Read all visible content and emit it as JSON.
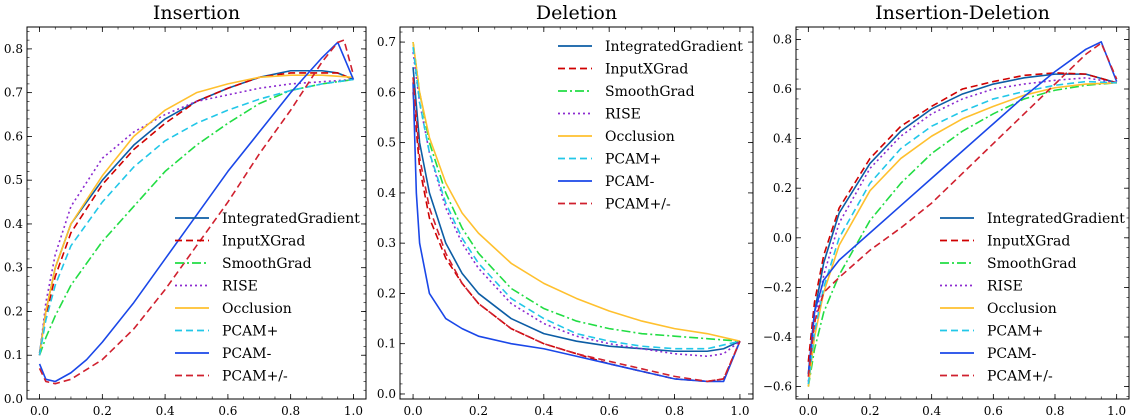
{
  "chart_data": [
    {
      "type": "line",
      "title": "Insertion",
      "xlabel": "",
      "ylabel": "",
      "xlim": [
        -0.04,
        1.04
      ],
      "ylim": [
        0.0,
        0.85
      ],
      "xticks": [
        "0.0",
        "0.2",
        "0.4",
        "0.6",
        "0.8",
        "1.0"
      ],
      "yticks": [
        "0.0",
        "0.1",
        "0.2",
        "0.3",
        "0.4",
        "0.5",
        "0.6",
        "0.7",
        "0.8"
      ],
      "legend_position": "lower-right",
      "series": [
        {
          "name": "IntegratedGradient",
          "color": "#0C5DA5",
          "dash": "solid",
          "x": [
            0,
            0.02,
            0.05,
            0.1,
            0.2,
            0.3,
            0.4,
            0.5,
            0.6,
            0.7,
            0.8,
            0.9,
            0.95,
            1.0
          ],
          "y": [
            0.105,
            0.2,
            0.3,
            0.4,
            0.5,
            0.58,
            0.64,
            0.68,
            0.71,
            0.735,
            0.75,
            0.75,
            0.745,
            0.73
          ]
        },
        {
          "name": "InputXGrad",
          "color": "#D00000",
          "dash": "dashed",
          "x": [
            0,
            0.02,
            0.05,
            0.1,
            0.2,
            0.3,
            0.4,
            0.5,
            0.6,
            0.7,
            0.8,
            0.9,
            0.95,
            1.0
          ],
          "y": [
            0.1,
            0.19,
            0.28,
            0.38,
            0.49,
            0.57,
            0.63,
            0.68,
            0.71,
            0.735,
            0.745,
            0.745,
            0.745,
            0.73
          ]
        },
        {
          "name": "SmoothGrad",
          "color": "#22DD44",
          "dash": "dashdot",
          "x": [
            0,
            0.02,
            0.05,
            0.1,
            0.2,
            0.3,
            0.4,
            0.5,
            0.6,
            0.7,
            0.8,
            0.9,
            1.0
          ],
          "y": [
            0.1,
            0.14,
            0.19,
            0.26,
            0.36,
            0.44,
            0.52,
            0.58,
            0.63,
            0.675,
            0.705,
            0.72,
            0.73
          ]
        },
        {
          "name": "RISE",
          "color": "#8C2BD0",
          "dash": "dotted",
          "x": [
            0,
            0.02,
            0.05,
            0.1,
            0.2,
            0.3,
            0.4,
            0.5,
            0.6,
            0.7,
            0.8,
            0.9,
            1.0
          ],
          "y": [
            0.1,
            0.22,
            0.33,
            0.44,
            0.55,
            0.61,
            0.65,
            0.68,
            0.695,
            0.71,
            0.72,
            0.725,
            0.73
          ]
        },
        {
          "name": "Occlusion",
          "color": "#FFC02E",
          "dash": "solid",
          "x": [
            0,
            0.02,
            0.05,
            0.1,
            0.2,
            0.3,
            0.4,
            0.5,
            0.6,
            0.7,
            0.8,
            0.9,
            1.0
          ],
          "y": [
            0.1,
            0.2,
            0.3,
            0.4,
            0.51,
            0.6,
            0.66,
            0.7,
            0.72,
            0.735,
            0.74,
            0.74,
            0.735
          ]
        },
        {
          "name": "PCAM+",
          "color": "#22C7E8",
          "dash": "dashed",
          "x": [
            0,
            0.02,
            0.05,
            0.1,
            0.2,
            0.3,
            0.4,
            0.5,
            0.6,
            0.7,
            0.8,
            0.9,
            1.0
          ],
          "y": [
            0.1,
            0.18,
            0.26,
            0.35,
            0.45,
            0.53,
            0.59,
            0.63,
            0.66,
            0.685,
            0.705,
            0.72,
            0.73
          ]
        },
        {
          "name": "PCAM-",
          "color": "#1A47E8",
          "dash": "solid",
          "x": [
            0,
            0.02,
            0.05,
            0.1,
            0.15,
            0.2,
            0.3,
            0.4,
            0.5,
            0.6,
            0.7,
            0.8,
            0.9,
            0.95,
            1.0
          ],
          "y": [
            0.08,
            0.045,
            0.04,
            0.06,
            0.09,
            0.13,
            0.22,
            0.32,
            0.42,
            0.52,
            0.61,
            0.7,
            0.78,
            0.815,
            0.73
          ]
        },
        {
          "name": "PCAM+/-",
          "color": "#D0202E",
          "dash": "dashed",
          "x": [
            0,
            0.02,
            0.05,
            0.1,
            0.2,
            0.3,
            0.4,
            0.5,
            0.6,
            0.7,
            0.8,
            0.9,
            0.95,
            0.97,
            1.0
          ],
          "y": [
            0.07,
            0.04,
            0.035,
            0.045,
            0.09,
            0.16,
            0.25,
            0.35,
            0.45,
            0.56,
            0.66,
            0.77,
            0.815,
            0.82,
            0.74
          ]
        }
      ]
    },
    {
      "type": "line",
      "title": "Deletion",
      "xlabel": "",
      "ylabel": "",
      "xlim": [
        -0.04,
        1.04
      ],
      "ylim": [
        -0.01,
        0.73
      ],
      "xticks": [
        "0.0",
        "0.2",
        "0.4",
        "0.6",
        "0.8",
        "1.0"
      ],
      "yticks": [
        "0.0",
        "0.1",
        "0.2",
        "0.3",
        "0.4",
        "0.5",
        "0.6",
        "0.7"
      ],
      "legend_position": "upper-right",
      "series": [
        {
          "name": "IntegratedGradient",
          "color": "#0C5DA5",
          "dash": "solid",
          "x": [
            0,
            0.02,
            0.05,
            0.1,
            0.15,
            0.2,
            0.3,
            0.4,
            0.5,
            0.6,
            0.7,
            0.8,
            0.9,
            0.95,
            1.0
          ],
          "y": [
            0.65,
            0.5,
            0.4,
            0.3,
            0.24,
            0.2,
            0.15,
            0.12,
            0.105,
            0.095,
            0.09,
            0.085,
            0.085,
            0.09,
            0.105
          ]
        },
        {
          "name": "InputXGrad",
          "color": "#D00000",
          "dash": "dashed",
          "x": [
            0,
            0.02,
            0.05,
            0.1,
            0.15,
            0.2,
            0.3,
            0.4,
            0.5,
            0.6,
            0.7,
            0.8,
            0.9,
            0.95,
            1.0
          ],
          "y": [
            0.6,
            0.45,
            0.35,
            0.27,
            0.22,
            0.18,
            0.13,
            0.1,
            0.08,
            0.06,
            0.045,
            0.03,
            0.025,
            0.03,
            0.105
          ]
        },
        {
          "name": "SmoothGrad",
          "color": "#22DD44",
          "dash": "dashdot",
          "x": [
            0,
            0.02,
            0.05,
            0.1,
            0.15,
            0.2,
            0.3,
            0.4,
            0.5,
            0.6,
            0.7,
            0.8,
            0.9,
            1.0
          ],
          "y": [
            0.7,
            0.6,
            0.5,
            0.4,
            0.33,
            0.28,
            0.21,
            0.17,
            0.145,
            0.13,
            0.12,
            0.115,
            0.11,
            0.105
          ]
        },
        {
          "name": "RISE",
          "color": "#8C2BD0",
          "dash": "dotted",
          "x": [
            0,
            0.02,
            0.05,
            0.1,
            0.15,
            0.2,
            0.3,
            0.4,
            0.5,
            0.6,
            0.7,
            0.8,
            0.9,
            0.95,
            1.0
          ],
          "y": [
            0.68,
            0.58,
            0.48,
            0.37,
            0.3,
            0.25,
            0.18,
            0.14,
            0.115,
            0.1,
            0.09,
            0.08,
            0.075,
            0.08,
            0.105
          ]
        },
        {
          "name": "Occlusion",
          "color": "#FFC02E",
          "dash": "solid",
          "x": [
            0,
            0.02,
            0.05,
            0.1,
            0.15,
            0.2,
            0.3,
            0.4,
            0.5,
            0.6,
            0.7,
            0.8,
            0.9,
            1.0
          ],
          "y": [
            0.7,
            0.6,
            0.51,
            0.42,
            0.36,
            0.32,
            0.26,
            0.22,
            0.19,
            0.165,
            0.145,
            0.13,
            0.12,
            0.105
          ]
        },
        {
          "name": "PCAM+",
          "color": "#22C7E8",
          "dash": "dashed",
          "x": [
            0,
            0.02,
            0.05,
            0.1,
            0.15,
            0.2,
            0.3,
            0.4,
            0.5,
            0.6,
            0.7,
            0.8,
            0.9,
            1.0
          ],
          "y": [
            0.69,
            0.58,
            0.48,
            0.38,
            0.31,
            0.26,
            0.19,
            0.15,
            0.12,
            0.105,
            0.095,
            0.09,
            0.09,
            0.105
          ]
        },
        {
          "name": "PCAM-",
          "color": "#1A47E8",
          "dash": "solid",
          "x": [
            0,
            0.01,
            0.02,
            0.05,
            0.1,
            0.15,
            0.2,
            0.3,
            0.4,
            0.5,
            0.6,
            0.7,
            0.8,
            0.9,
            0.95,
            1.0
          ],
          "y": [
            0.62,
            0.4,
            0.3,
            0.2,
            0.15,
            0.13,
            0.115,
            0.1,
            0.09,
            0.075,
            0.06,
            0.045,
            0.03,
            0.025,
            0.025,
            0.105
          ]
        },
        {
          "name": "PCAM+/-",
          "color": "#D0202E",
          "dash": "dashed",
          "x": [
            0,
            0.02,
            0.05,
            0.1,
            0.15,
            0.2,
            0.3,
            0.4,
            0.5,
            0.6,
            0.7,
            0.8,
            0.9,
            0.95,
            1.0
          ],
          "y": [
            0.63,
            0.47,
            0.37,
            0.28,
            0.22,
            0.18,
            0.13,
            0.1,
            0.08,
            0.065,
            0.05,
            0.035,
            0.025,
            0.03,
            0.105
          ]
        }
      ]
    },
    {
      "type": "line",
      "title": "Insertion-Deletion",
      "xlabel": "",
      "ylabel": "",
      "xlim": [
        -0.04,
        1.04
      ],
      "ylim": [
        -0.65,
        0.85
      ],
      "xticks": [
        "0.0",
        "0.2",
        "0.4",
        "0.6",
        "0.8",
        "1.0"
      ],
      "yticks": [
        "−0.6",
        "−0.4",
        "−0.2",
        "0.0",
        "0.2",
        "0.4",
        "0.6",
        "0.8"
      ],
      "ytick_values": [
        -0.6,
        -0.4,
        -0.2,
        0.0,
        0.2,
        0.4,
        0.6,
        0.8
      ],
      "legend_position": "lower-right",
      "series": [
        {
          "name": "IntegratedGradient",
          "color": "#0C5DA5",
          "dash": "solid",
          "x": [
            0,
            0.02,
            0.05,
            0.1,
            0.2,
            0.3,
            0.4,
            0.5,
            0.6,
            0.7,
            0.8,
            0.9,
            1.0
          ],
          "y": [
            -0.55,
            -0.3,
            -0.1,
            0.1,
            0.3,
            0.43,
            0.52,
            0.58,
            0.62,
            0.645,
            0.66,
            0.66,
            0.625
          ]
        },
        {
          "name": "InputXGrad",
          "color": "#D00000",
          "dash": "dashed",
          "x": [
            0,
            0.02,
            0.05,
            0.1,
            0.2,
            0.3,
            0.4,
            0.5,
            0.6,
            0.7,
            0.8,
            0.9,
            1.0
          ],
          "y": [
            -0.5,
            -0.26,
            -0.07,
            0.12,
            0.32,
            0.45,
            0.53,
            0.6,
            0.63,
            0.655,
            0.665,
            0.66,
            0.625
          ]
        },
        {
          "name": "SmoothGrad",
          "color": "#22DD44",
          "dash": "dashdot",
          "x": [
            0,
            0.02,
            0.05,
            0.1,
            0.2,
            0.3,
            0.4,
            0.5,
            0.6,
            0.7,
            0.8,
            0.9,
            1.0
          ],
          "y": [
            -0.6,
            -0.45,
            -0.3,
            -0.15,
            0.07,
            0.22,
            0.34,
            0.43,
            0.5,
            0.56,
            0.595,
            0.615,
            0.625
          ]
        },
        {
          "name": "RISE",
          "color": "#8C2BD0",
          "dash": "dotted",
          "x": [
            0,
            0.02,
            0.05,
            0.1,
            0.2,
            0.3,
            0.4,
            0.5,
            0.6,
            0.7,
            0.8,
            0.9,
            1.0
          ],
          "y": [
            -0.58,
            -0.35,
            -0.15,
            0.06,
            0.28,
            0.41,
            0.5,
            0.56,
            0.6,
            0.62,
            0.635,
            0.645,
            0.625
          ]
        },
        {
          "name": "Occlusion",
          "color": "#FFC02E",
          "dash": "solid",
          "x": [
            0,
            0.02,
            0.05,
            0.1,
            0.2,
            0.3,
            0.4,
            0.5,
            0.6,
            0.7,
            0.8,
            0.9,
            1.0
          ],
          "y": [
            -0.6,
            -0.4,
            -0.22,
            -0.03,
            0.19,
            0.32,
            0.41,
            0.48,
            0.53,
            0.575,
            0.605,
            0.62,
            0.625
          ]
        },
        {
          "name": "PCAM+",
          "color": "#22C7E8",
          "dash": "dashed",
          "x": [
            0,
            0.02,
            0.05,
            0.1,
            0.2,
            0.3,
            0.4,
            0.5,
            0.6,
            0.7,
            0.8,
            0.9,
            1.0
          ],
          "y": [
            -0.59,
            -0.38,
            -0.2,
            0.0,
            0.22,
            0.36,
            0.45,
            0.51,
            0.56,
            0.59,
            0.615,
            0.63,
            0.625
          ]
        },
        {
          "name": "PCAM-",
          "color": "#1A47E8",
          "dash": "solid",
          "x": [
            0,
            0.02,
            0.05,
            0.1,
            0.2,
            0.3,
            0.4,
            0.5,
            0.6,
            0.7,
            0.8,
            0.9,
            0.95,
            1.0
          ],
          "y": [
            -0.55,
            -0.3,
            -0.17,
            -0.09,
            0.02,
            0.13,
            0.24,
            0.35,
            0.46,
            0.57,
            0.67,
            0.76,
            0.79,
            0.63
          ]
        },
        {
          "name": "PCAM+/-",
          "color": "#D0202E",
          "dash": "dashed",
          "x": [
            0,
            0.02,
            0.05,
            0.1,
            0.2,
            0.3,
            0.4,
            0.5,
            0.6,
            0.7,
            0.8,
            0.9,
            0.95,
            1.0
          ],
          "y": [
            -0.56,
            -0.34,
            -0.22,
            -0.16,
            -0.05,
            0.04,
            0.14,
            0.26,
            0.38,
            0.5,
            0.62,
            0.74,
            0.785,
            0.64
          ]
        }
      ]
    }
  ]
}
